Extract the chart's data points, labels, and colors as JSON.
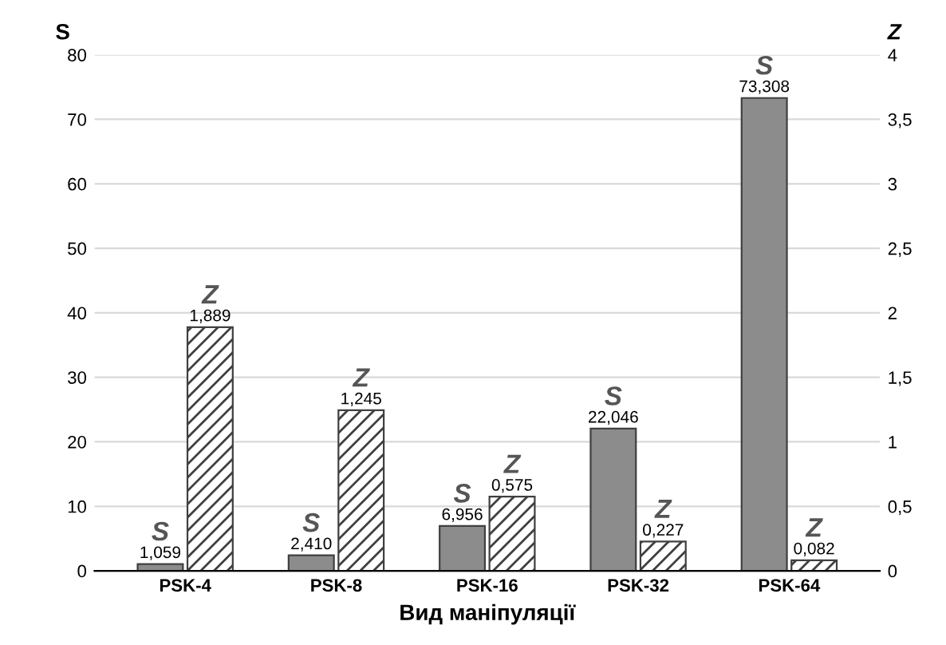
{
  "chart_data": {
    "type": "bar",
    "xlabel": "Вид маніпуляції",
    "ylabel": "S",
    "y2label": "Z",
    "categories": [
      "PSK-4",
      "PSK-8",
      "PSK-16",
      "PSK-32",
      "PSK-64"
    ],
    "series": [
      {
        "name": "S",
        "color": "#8c8c8c",
        "values": [
          1.059,
          2.41,
          6.956,
          22.046,
          73.308
        ],
        "value_labels": [
          "1,059",
          "2,410",
          "6,956",
          "22,046",
          "73,308"
        ]
      },
      {
        "name": "Z",
        "color": "#404040",
        "axis": "y2",
        "values": [
          1.889,
          1.245,
          0.575,
          0.227,
          0.082
        ],
        "value_labels": [
          "1,889",
          "1,245",
          "0,575",
          "0,227",
          "0,082"
        ]
      }
    ],
    "ylim": [
      0,
      80
    ],
    "yticks": [
      0,
      10,
      20,
      30,
      40,
      50,
      60,
      70,
      80
    ],
    "y2lim": [
      0,
      4
    ],
    "y2ticks": [
      0,
      {
        "value": 0.5,
        "label": "0,5"
      },
      1,
      {
        "value": 1.5,
        "label": "1,5"
      },
      2,
      {
        "value": 2.5,
        "label": "2,5"
      },
      3,
      {
        "value": 3.5,
        "label": "3,5"
      },
      4
    ],
    "grid": "y",
    "legend": false
  }
}
